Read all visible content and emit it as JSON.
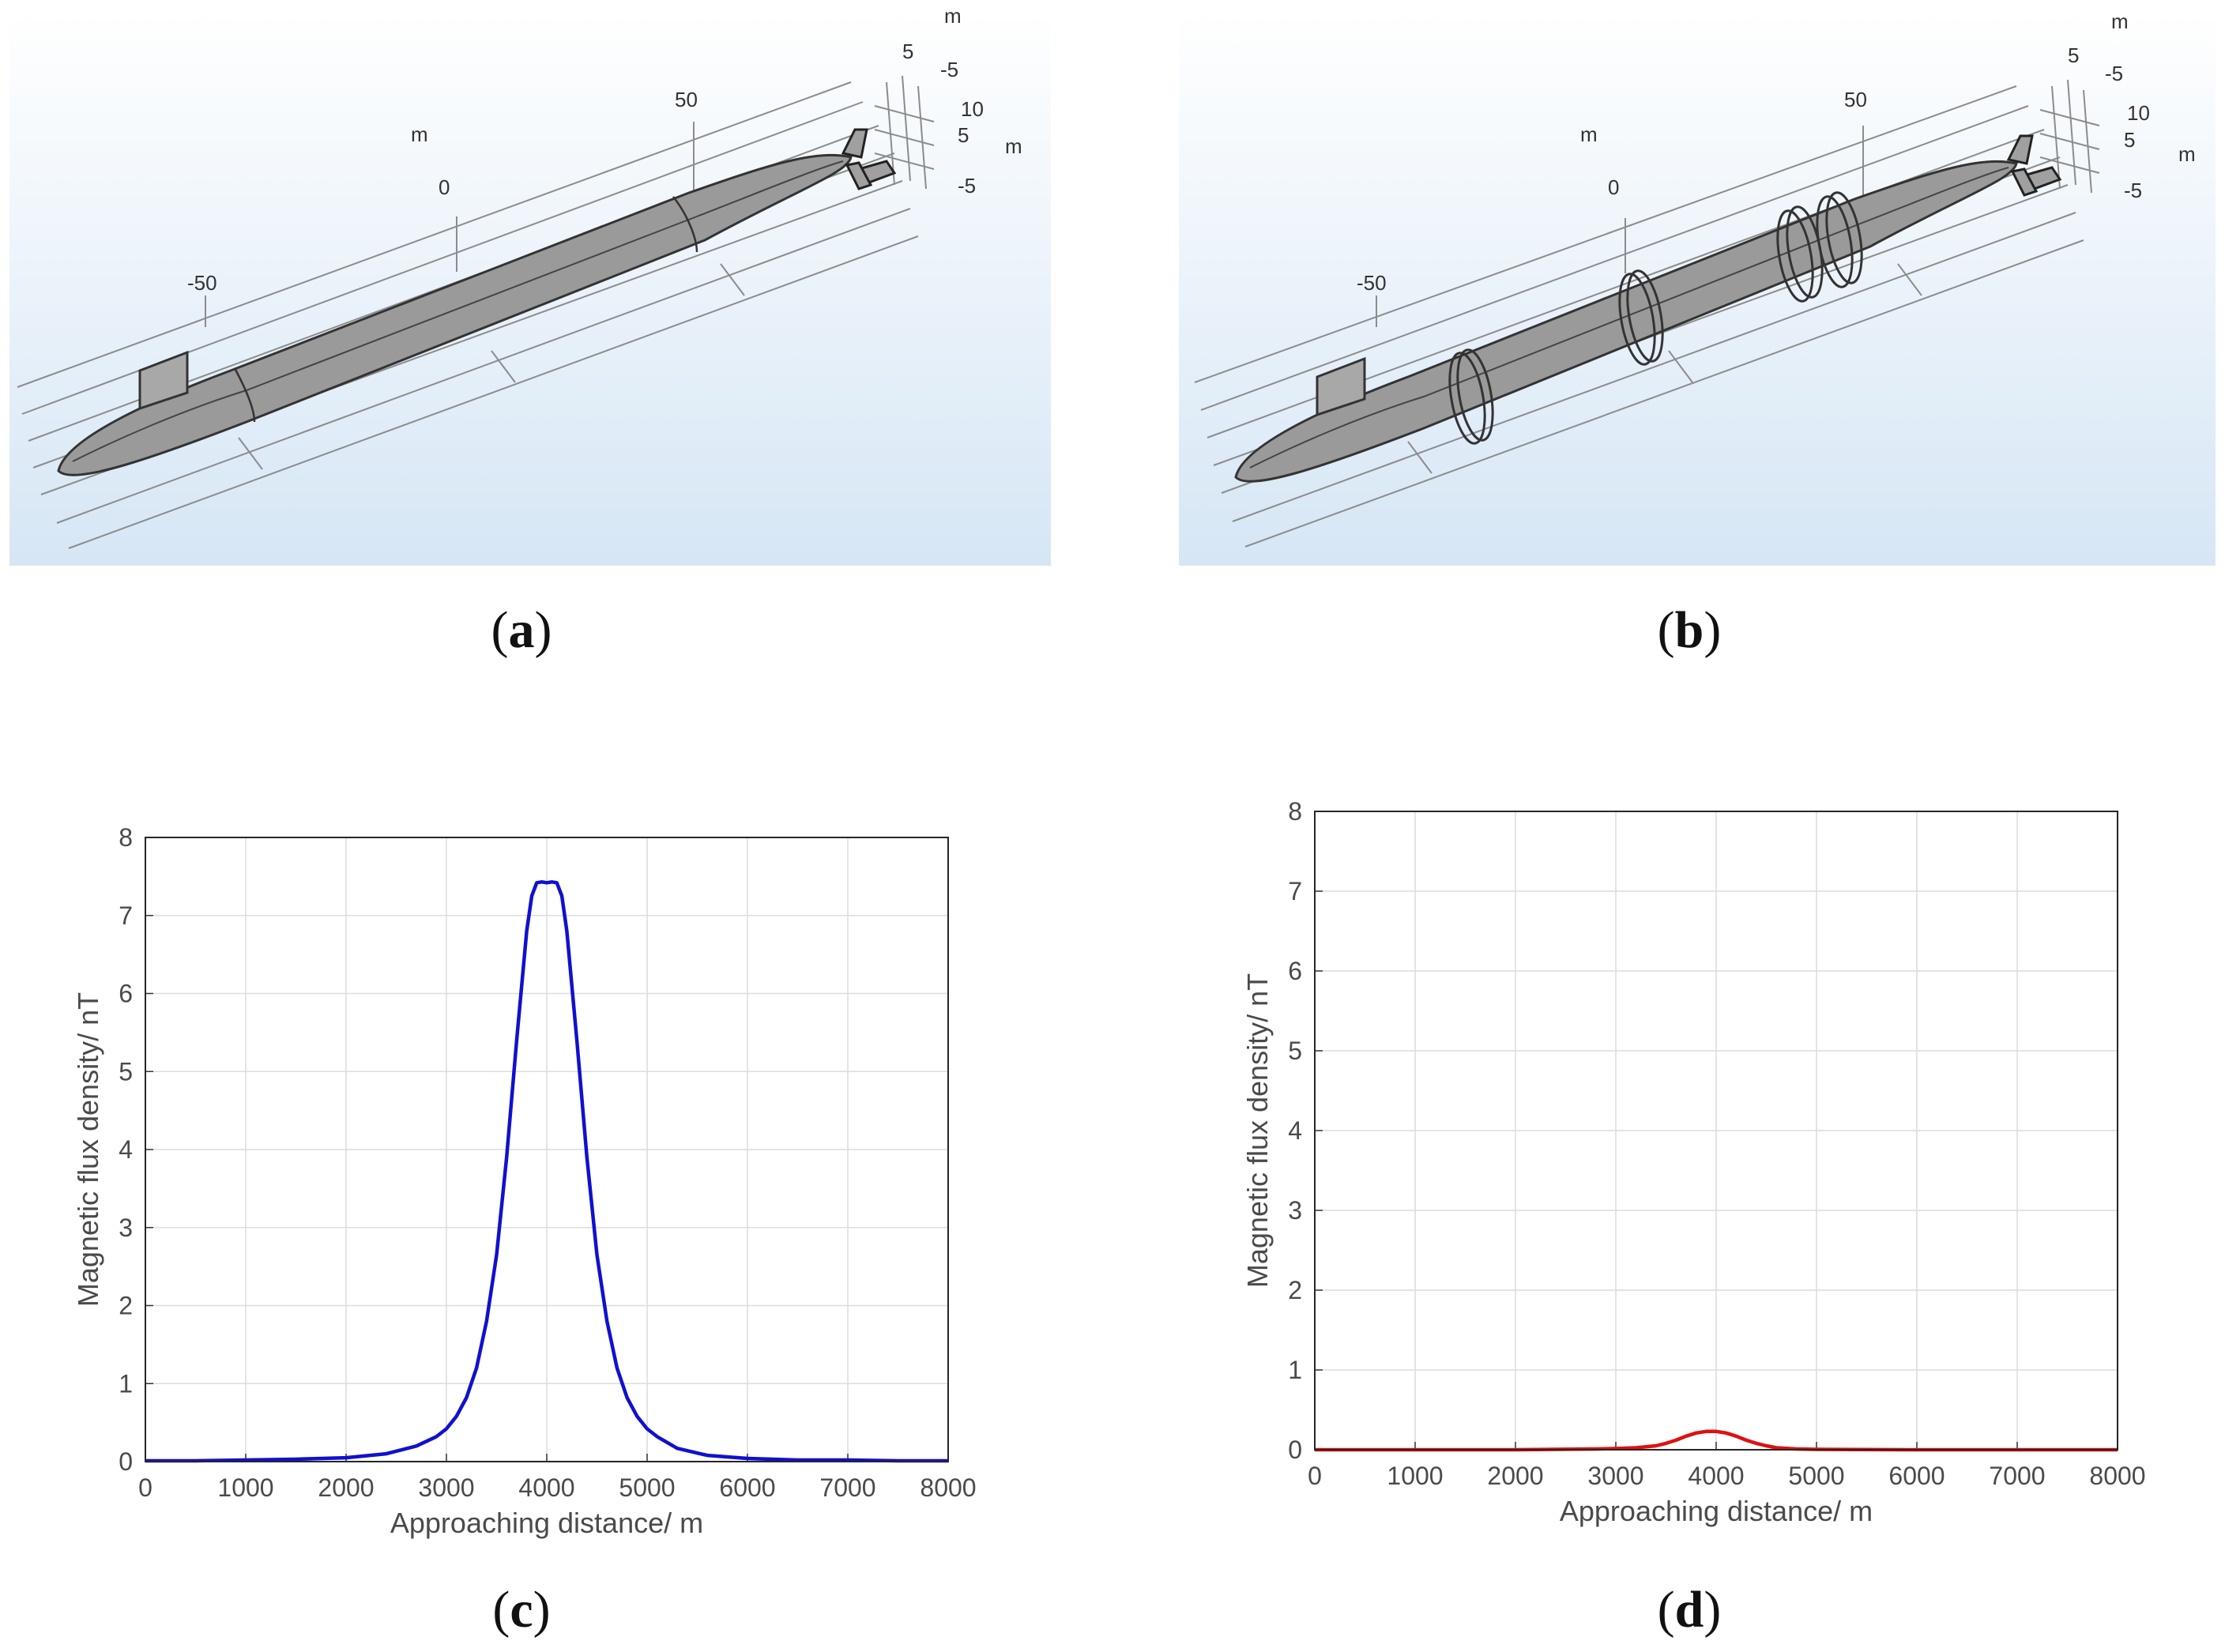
{
  "panels": {
    "a": {
      "caption_letter": "a"
    },
    "b": {
      "caption_letter": "b"
    },
    "c": {
      "caption_letter": "c"
    },
    "d": {
      "caption_letter": "d"
    }
  },
  "model_axes": {
    "x_ticks": [
      "-50",
      "0",
      "50"
    ],
    "x_unit": "m",
    "y_ticks": [
      "5",
      "-5"
    ],
    "y_unit": "m",
    "z_ticks": [
      "10",
      "5",
      "-5"
    ],
    "z_unit": "m"
  },
  "colors": {
    "hull": "#9a9a9a",
    "background_top": "#ffffff",
    "background_bottom": "#d6e6f5",
    "series_c": "#1010d0",
    "series_d": "#e01010",
    "grid": "#dcdcdc"
  },
  "chart_data": [
    {
      "type": "line",
      "panel": "c",
      "xlabel": "Approaching distance/ m",
      "ylabel": "Magnetic flux density/ nT",
      "xlim": [
        0,
        8000
      ],
      "ylim": [
        0,
        8
      ],
      "xticks": [
        "0",
        "1000",
        "2000",
        "3000",
        "4000",
        "5000",
        "6000",
        "7000",
        "8000"
      ],
      "yticks": [
        "0",
        "1",
        "2",
        "3",
        "4",
        "5",
        "6",
        "7",
        "8"
      ],
      "grid": true,
      "series": [
        {
          "color": "#1010d0",
          "x": [
            0,
            500,
            1000,
            1500,
            2000,
            2400,
            2700,
            2900,
            3000,
            3100,
            3200,
            3300,
            3400,
            3500,
            3600,
            3700,
            3800,
            3850,
            3900,
            3950,
            4000,
            4050,
            4100,
            4150,
            4200,
            4300,
            4400,
            4500,
            4600,
            4700,
            4800,
            4900,
            5000,
            5100,
            5300,
            5600,
            6000,
            6500,
            7000,
            7500,
            8000
          ],
          "y": [
            0.01,
            0.01,
            0.02,
            0.03,
            0.05,
            0.1,
            0.2,
            0.32,
            0.42,
            0.58,
            0.82,
            1.2,
            1.8,
            2.65,
            3.9,
            5.4,
            6.8,
            7.25,
            7.42,
            7.43,
            7.42,
            7.43,
            7.42,
            7.25,
            6.8,
            5.4,
            3.9,
            2.65,
            1.8,
            1.2,
            0.82,
            0.58,
            0.42,
            0.32,
            0.17,
            0.08,
            0.04,
            0.02,
            0.02,
            0.01,
            0.01
          ]
        }
      ]
    },
    {
      "type": "line",
      "panel": "d",
      "xlabel": "Approaching distance/ m",
      "ylabel": "Magnetic flux density/ nT",
      "xlim": [
        0,
        8000
      ],
      "ylim": [
        0,
        8
      ],
      "xticks": [
        "0",
        "1000",
        "2000",
        "3000",
        "4000",
        "5000",
        "6000",
        "7000",
        "8000"
      ],
      "yticks": [
        "0",
        "1",
        "2",
        "3",
        "4",
        "5",
        "6",
        "7",
        "8"
      ],
      "grid": true,
      "series": [
        {
          "color": "#e01010",
          "x": [
            0,
            1000,
            2000,
            2800,
            3000,
            3200,
            3400,
            3500,
            3600,
            3700,
            3800,
            3900,
            4000,
            4100,
            4200,
            4300,
            4400,
            4500,
            4600,
            4800,
            5000,
            6000,
            7000,
            8000
          ],
          "y": [
            0.0,
            0.0,
            0.0,
            0.01,
            0.015,
            0.025,
            0.05,
            0.08,
            0.12,
            0.17,
            0.21,
            0.23,
            0.23,
            0.21,
            0.17,
            0.12,
            0.08,
            0.05,
            0.025,
            0.01,
            0.005,
            0.0,
            0.0,
            0.0
          ]
        }
      ]
    }
  ]
}
